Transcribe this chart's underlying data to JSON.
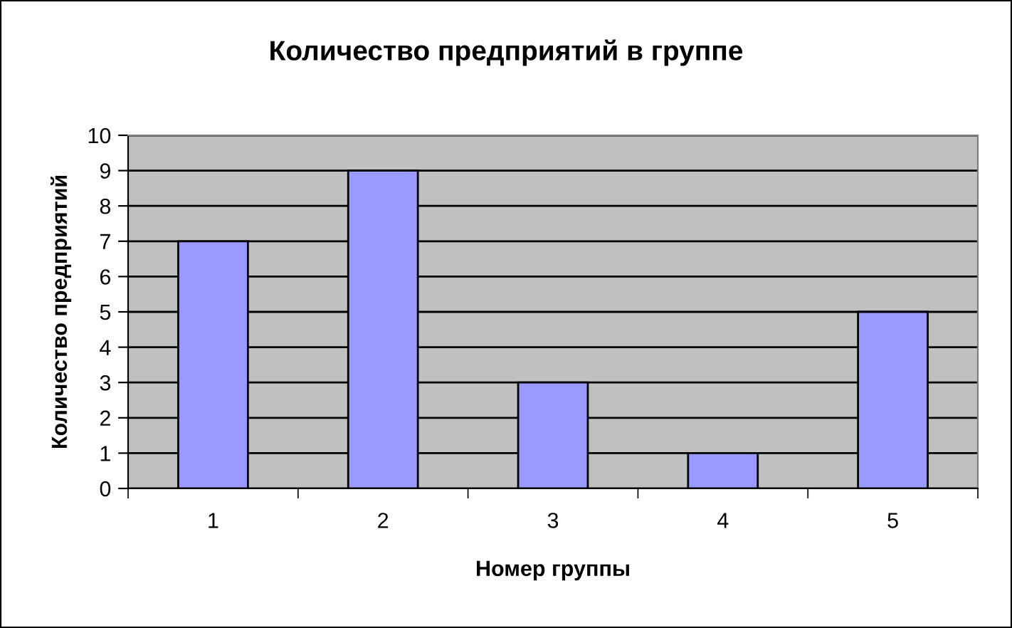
{
  "chart_data": {
    "type": "bar",
    "title": "Количество предприятий в группе",
    "xlabel": "Номер группы",
    "ylabel": "Количество предприятий",
    "categories": [
      "1",
      "2",
      "3",
      "4",
      "5"
    ],
    "values": [
      7,
      9,
      3,
      1,
      5
    ],
    "color": "#9999ff",
    "ylim": [
      0,
      10
    ],
    "yticks": [
      0,
      1,
      2,
      3,
      4,
      5,
      6,
      7,
      8,
      9,
      10
    ],
    "grid": "y",
    "legend": false
  }
}
